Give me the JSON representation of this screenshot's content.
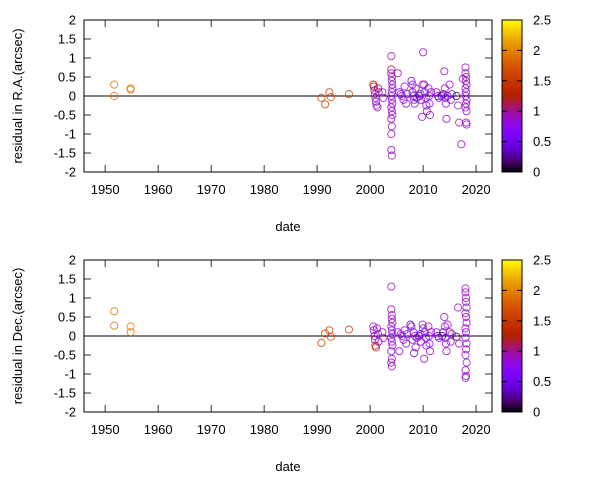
{
  "chart_data": [
    {
      "type": "scatter",
      "xlabel": "date",
      "ylabel": "residual in R.A.(arcsec)",
      "xlim": [
        1946,
        2023
      ],
      "ylim": [
        -2,
        2
      ],
      "xticks": [
        1950,
        1960,
        1970,
        1980,
        1990,
        2000,
        2010,
        2020
      ],
      "yticks": [
        -2,
        -1.5,
        -1,
        -0.5,
        0,
        0.5,
        1,
        1.5,
        2
      ],
      "colorbar": {
        "range": [
          0,
          2.5
        ],
        "ticks": [
          0,
          0.5,
          1,
          1.5,
          2,
          2.5
        ],
        "palette": "black-purple-red-orange-yellow"
      },
      "zero_line": true,
      "grid": false,
      "marker": "open-circle",
      "points_format": [
        "date",
        "residual",
        "color_value"
      ],
      "points": [
        [
          1951.7,
          0.3,
          1.9
        ],
        [
          1951.7,
          0.0,
          1.9
        ],
        [
          1954.8,
          0.2,
          1.95
        ],
        [
          1954.8,
          0.17,
          1.95
        ],
        [
          1990.8,
          -0.05,
          1.6
        ],
        [
          1991.5,
          -0.22,
          1.6
        ],
        [
          1992.3,
          0.1,
          1.6
        ],
        [
          1992.6,
          -0.03,
          1.6
        ],
        [
          1996,
          0.05,
          1.6
        ],
        [
          2000.6,
          0.3,
          1.3
        ],
        [
          2000.7,
          0.25,
          1.2
        ],
        [
          2000.8,
          0.15,
          1.0
        ],
        [
          2000.9,
          0.05,
          0.9
        ],
        [
          2001,
          -0.05,
          0.9
        ],
        [
          2001.1,
          -0.15,
          0.9
        ],
        [
          2001.2,
          -0.25,
          0.9
        ],
        [
          2001.4,
          -0.3,
          0.9
        ],
        [
          2001.5,
          0.2,
          1.0
        ],
        [
          2001.6,
          0.1,
          1.0
        ],
        [
          2002.3,
          0.1,
          0.9
        ],
        [
          2002.5,
          -0.05,
          0.9
        ],
        [
          2004,
          1.05,
          0.95
        ],
        [
          2004,
          0.7,
          1.1
        ],
        [
          2004,
          0.6,
          0.9
        ],
        [
          2004.1,
          0.5,
          0.9
        ],
        [
          2004.1,
          0.4,
          0.9
        ],
        [
          2004.2,
          0.3,
          0.9
        ],
        [
          2004.2,
          0.2,
          0.85
        ],
        [
          2004.1,
          0.1,
          0.85
        ],
        [
          2004,
          0.0,
          0.85
        ],
        [
          2004.1,
          -0.1,
          0.85
        ],
        [
          2004.2,
          -0.2,
          0.85
        ],
        [
          2004,
          -0.3,
          0.9
        ],
        [
          2004.1,
          -0.4,
          0.9
        ],
        [
          2004.2,
          -0.5,
          0.9
        ],
        [
          2004,
          -0.6,
          0.9
        ],
        [
          2004.1,
          -0.8,
          0.9
        ],
        [
          2004,
          -1.0,
          0.9
        ],
        [
          2004,
          -1.42,
          0.9
        ],
        [
          2004.1,
          -1.57,
          0.9
        ],
        [
          2005.2,
          0.6,
          0.9
        ],
        [
          2005.5,
          0.1,
          0.8
        ],
        [
          2005.8,
          0.05,
          0.8
        ],
        [
          2006,
          0.0,
          0.8
        ],
        [
          2006.3,
          -0.1,
          0.8
        ],
        [
          2006.5,
          0.25,
          0.85
        ],
        [
          2006.8,
          -0.2,
          0.85
        ],
        [
          2007,
          0.05,
          0.7
        ],
        [
          2007.8,
          0.4,
          0.6
        ],
        [
          2008,
          0.3,
          0.6
        ],
        [
          2008,
          0.1,
          0.8
        ],
        [
          2008.2,
          0.0,
          0.6
        ],
        [
          2008.3,
          -0.1,
          0.8
        ],
        [
          2008.4,
          -0.2,
          0.8
        ],
        [
          2008.6,
          0.2,
          0.9
        ],
        [
          2008.8,
          -0.05,
          0.4
        ],
        [
          2009.3,
          0.0,
          0.3
        ],
        [
          2009.5,
          0.05,
          0.5
        ],
        [
          2009.6,
          -0.1,
          0.8
        ],
        [
          2009.8,
          -0.55,
          0.9
        ],
        [
          2009.9,
          0.3,
          0.9
        ],
        [
          2010,
          1.15,
          0.9
        ],
        [
          2010.2,
          0.3,
          0.9
        ],
        [
          2010.3,
          0.1,
          0.8
        ],
        [
          2010.5,
          -0.05,
          0.8
        ],
        [
          2010.6,
          -0.25,
          0.8
        ],
        [
          2010.7,
          -0.4,
          0.9
        ],
        [
          2011,
          0.2,
          0.9
        ],
        [
          2011.1,
          0.0,
          0.7
        ],
        [
          2011.2,
          -0.2,
          0.8
        ],
        [
          2011.3,
          -0.5,
          0.9
        ],
        [
          2011.5,
          0.1,
          0.8
        ],
        [
          2012.5,
          0.1,
          0.9
        ],
        [
          2012.8,
          0.0,
          0.8
        ],
        [
          2013,
          -0.05,
          0.7
        ],
        [
          2013.5,
          0.0,
          0.25
        ],
        [
          2013.8,
          0.05,
          0.3
        ],
        [
          2014,
          0.65,
          0.9
        ],
        [
          2014.1,
          0.2,
          0.9
        ],
        [
          2014.2,
          -0.05,
          0.7
        ],
        [
          2014.3,
          -0.2,
          0.8
        ],
        [
          2014.4,
          -0.6,
          0.9
        ],
        [
          2014.6,
          0.0,
          0.4
        ],
        [
          2015,
          0.3,
          0.9
        ],
        [
          2015.2,
          -0.1,
          0.9
        ],
        [
          2015.4,
          0.05,
          0.6
        ],
        [
          2016.3,
          0.0,
          0.15
        ],
        [
          2016.6,
          -0.25,
          0.9
        ],
        [
          2016.8,
          -0.7,
          0.9
        ],
        [
          2017.2,
          -1.27,
          0.9
        ],
        [
          2017.5,
          0.45,
          0.9
        ],
        [
          2018,
          0.75,
          0.9
        ],
        [
          2018,
          0.6,
          0.9
        ],
        [
          2018.1,
          0.5,
          0.9
        ],
        [
          2018.1,
          0.4,
          0.9
        ],
        [
          2018.2,
          0.3,
          0.9
        ],
        [
          2018,
          0.2,
          0.9
        ],
        [
          2018.1,
          0.1,
          0.9
        ],
        [
          2018,
          0.0,
          0.8
        ],
        [
          2018.2,
          -0.1,
          0.9
        ],
        [
          2018.1,
          -0.2,
          0.9
        ],
        [
          2018,
          -0.3,
          0.9
        ],
        [
          2018.2,
          -0.4,
          0.9
        ],
        [
          2018.1,
          -0.7,
          0.9
        ],
        [
          2018.2,
          -0.75,
          0.9
        ]
      ]
    },
    {
      "type": "scatter",
      "xlabel": "date",
      "ylabel": "residual in Dec.(arcsec)",
      "xlim": [
        1946,
        2023
      ],
      "ylim": [
        -2,
        2
      ],
      "xticks": [
        1950,
        1960,
        1970,
        1980,
        1990,
        2000,
        2010,
        2020
      ],
      "yticks": [
        -2,
        -1.5,
        -1,
        -0.5,
        0,
        0.5,
        1,
        1.5,
        2
      ],
      "colorbar": {
        "range": [
          0,
          2.5
        ],
        "ticks": [
          0,
          0.5,
          1,
          1.5,
          2,
          2.5
        ],
        "palette": "black-purple-red-orange-yellow"
      },
      "zero_line": true,
      "grid": false,
      "marker": "open-circle",
      "points_format": [
        "date",
        "residual",
        "color_value"
      ],
      "points": [
        [
          1951.7,
          0.65,
          1.9
        ],
        [
          1951.7,
          0.27,
          1.9
        ],
        [
          1954.8,
          0.25,
          1.95
        ],
        [
          1954.8,
          0.1,
          1.95
        ],
        [
          1990.8,
          -0.18,
          1.6
        ],
        [
          1991.5,
          0.07,
          1.6
        ],
        [
          1992.3,
          0.15,
          1.6
        ],
        [
          1992.6,
          -0.02,
          1.6
        ],
        [
          1996,
          0.17,
          1.6
        ],
        [
          2000.6,
          0.25,
          0.9
        ],
        [
          2000.7,
          0.15,
          0.9
        ],
        [
          2000.8,
          0.0,
          0.9
        ],
        [
          2000.9,
          -0.1,
          0.9
        ],
        [
          2001,
          -0.25,
          1.2
        ],
        [
          2001.1,
          -0.3,
          1.3
        ],
        [
          2001.3,
          0.2,
          0.9
        ],
        [
          2001.5,
          0.05,
          0.9
        ],
        [
          2001.6,
          -0.15,
          0.9
        ],
        [
          2002.3,
          0.1,
          0.9
        ],
        [
          2002.5,
          -0.05,
          0.9
        ],
        [
          2004,
          1.3,
          0.9
        ],
        [
          2004,
          0.7,
          0.9
        ],
        [
          2004.1,
          0.55,
          0.9
        ],
        [
          2004.1,
          0.45,
          0.9
        ],
        [
          2004.2,
          0.35,
          0.9
        ],
        [
          2004,
          0.25,
          0.85
        ],
        [
          2004.1,
          0.15,
          0.85
        ],
        [
          2004.2,
          0.05,
          0.85
        ],
        [
          2004,
          -0.05,
          0.85
        ],
        [
          2004.1,
          -0.15,
          0.85
        ],
        [
          2004.2,
          -0.25,
          0.85
        ],
        [
          2004,
          -0.4,
          0.9
        ],
        [
          2004.1,
          -0.6,
          0.9
        ],
        [
          2004,
          -0.7,
          0.9
        ],
        [
          2004.1,
          -0.8,
          0.9
        ],
        [
          2005.2,
          0.1,
          0.8
        ],
        [
          2005.5,
          -0.4,
          0.9
        ],
        [
          2005.8,
          0.05,
          0.8
        ],
        [
          2006,
          0.0,
          0.8
        ],
        [
          2006.3,
          -0.1,
          0.8
        ],
        [
          2006.5,
          0.15,
          0.85
        ],
        [
          2006.8,
          -0.2,
          0.85
        ],
        [
          2007,
          0.05,
          0.7
        ],
        [
          2007.6,
          0.3,
          0.3
        ],
        [
          2007.8,
          0.25,
          0.5
        ],
        [
          2008,
          -0.1,
          0.8
        ],
        [
          2008.2,
          0.1,
          0.8
        ],
        [
          2008.3,
          -0.45,
          0.3
        ],
        [
          2008.5,
          0.0,
          0.8
        ],
        [
          2008.6,
          -0.3,
          0.9
        ],
        [
          2008.8,
          -0.05,
          0.6
        ],
        [
          2009.3,
          0.0,
          0.3
        ],
        [
          2009.5,
          0.05,
          0.5
        ],
        [
          2009.6,
          -0.15,
          0.8
        ],
        [
          2009.9,
          0.3,
          0.9
        ],
        [
          2010,
          0.2,
          0.9
        ],
        [
          2010.2,
          -0.6,
          0.9
        ],
        [
          2010.3,
          0.1,
          0.8
        ],
        [
          2010.5,
          -0.05,
          0.8
        ],
        [
          2010.6,
          -0.25,
          0.8
        ],
        [
          2011,
          0.25,
          0.9
        ],
        [
          2011.1,
          0.0,
          0.7
        ],
        [
          2011.2,
          -0.2,
          0.8
        ],
        [
          2011.3,
          -0.4,
          0.9
        ],
        [
          2011.5,
          0.1,
          0.8
        ],
        [
          2012.5,
          0.1,
          0.9
        ],
        [
          2012.8,
          0.0,
          0.8
        ],
        [
          2013,
          -0.05,
          0.7
        ],
        [
          2013.6,
          0.0,
          0.25
        ],
        [
          2013.8,
          0.1,
          0.3
        ],
        [
          2014,
          0.5,
          0.9
        ],
        [
          2014.1,
          0.25,
          0.9
        ],
        [
          2014.2,
          -0.05,
          0.7
        ],
        [
          2014.3,
          -0.2,
          0.8
        ],
        [
          2014.4,
          -0.4,
          0.9
        ],
        [
          2014.6,
          0.3,
          0.9
        ],
        [
          2015,
          0.1,
          0.9
        ],
        [
          2015.2,
          -0.15,
          0.9
        ],
        [
          2015.4,
          0.05,
          0.6
        ],
        [
          2016.3,
          -0.02,
          0.15
        ],
        [
          2016.6,
          0.75,
          0.9
        ],
        [
          2016.8,
          -0.2,
          0.9
        ],
        [
          2018,
          1.25,
          0.9
        ],
        [
          2018,
          1.15,
          0.9
        ],
        [
          2018.1,
          1.0,
          0.9
        ],
        [
          2018.1,
          0.9,
          0.9
        ],
        [
          2018.2,
          0.75,
          0.9
        ],
        [
          2018,
          0.6,
          0.9
        ],
        [
          2018.1,
          0.5,
          0.9
        ],
        [
          2018.2,
          0.35,
          0.9
        ],
        [
          2018,
          0.2,
          0.9
        ],
        [
          2018.1,
          0.1,
          0.8
        ],
        [
          2018,
          -0.05,
          0.8
        ],
        [
          2018.2,
          -0.2,
          0.9
        ],
        [
          2018.1,
          -0.35,
          0.9
        ],
        [
          2018,
          -0.5,
          0.9
        ],
        [
          2018.2,
          -0.7,
          0.9
        ],
        [
          2018,
          -0.9,
          0.9
        ],
        [
          2018.1,
          -1.05,
          0.9
        ],
        [
          2018,
          -1.1,
          0.9
        ]
      ]
    }
  ]
}
